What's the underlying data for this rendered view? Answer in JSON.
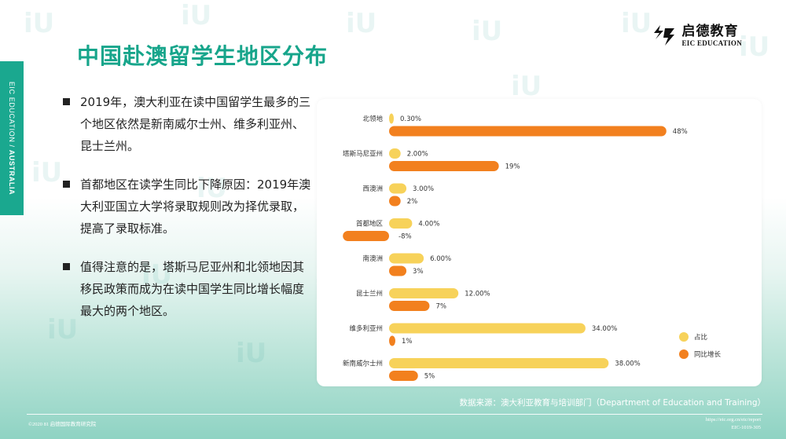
{
  "side_tab": {
    "left": "EIC EDUCATION / ",
    "right": "AUSTRALIA"
  },
  "title": "中国赴澳留学生地区分布",
  "brand": {
    "name_cn": "启德教育",
    "name_en": "EIC EDUCATION"
  },
  "bullets": [
    "2019年，澳大利亚在读中国留学生最多的三个地区依然是新南威尔士州、维多利亚州、昆士兰州。",
    "首都地区在读学生同比下降原因：2019年澳大利亚国立大学将录取规则改为择优录取，提高了录取标准。",
    "值得注意的是，塔斯马尼亚州和北领地因其移民政策而成为在读中国学生同比增长幅度最大的两个地区。"
  ],
  "chart_data": {
    "type": "bar",
    "orientation": "horizontal",
    "categories": [
      "北领地",
      "塔斯马尼亚州",
      "西澳洲",
      "首都地区",
      "南澳洲",
      "昆士兰州",
      "维多利亚州",
      "新南威尔士州"
    ],
    "series": [
      {
        "name": "占比",
        "values": [
          0.3,
          2.0,
          3.0,
          4.0,
          6.0,
          12.0,
          34.0,
          38.0
        ],
        "labels": [
          "0.30%",
          "2.00%",
          "3.00%",
          "4.00%",
          "6.00%",
          "12.00%",
          "34.00%",
          "38.00%"
        ],
        "color": "#f7d25a"
      },
      {
        "name": "同比增长",
        "values": [
          48,
          19,
          2,
          -8,
          3,
          7,
          1,
          5
        ],
        "labels": [
          "48%",
          "19%",
          "2%",
          "-8%",
          "3%",
          "7%",
          "1%",
          "5%"
        ],
        "color": "#f2801e"
      }
    ],
    "legend_position": "bottom-right",
    "grid": false
  },
  "source": "数据来源：澳大利亚教育与培训部门（Department of Education and Training）",
  "footer": {
    "left": "©2020 81 启德国际教育研究院",
    "right_line1": "https://eic.org.cn/eic/report",
    "right_line2": "EIC-1019-305"
  },
  "colors": {
    "accent": "#17a58b",
    "bar_share": "#f7d25a",
    "bar_growth": "#f2801e"
  }
}
